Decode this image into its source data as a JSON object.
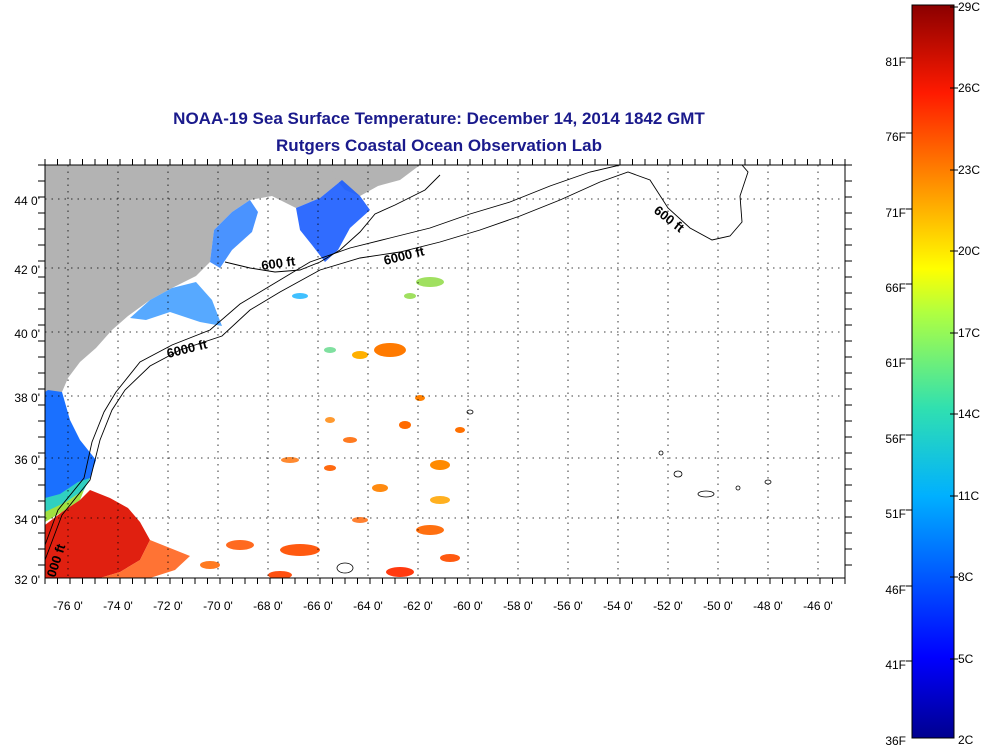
{
  "title": "NOAA-19 Sea Surface Temperature:  December 14, 2014 1842 GMT",
  "subtitle": "Rutgers Coastal Ocean Observation Lab",
  "lat_ticks": [
    "32 0'",
    "34 0'",
    "36 0'",
    "38 0'",
    "40 0'",
    "42 0'",
    "44 0'"
  ],
  "lon_ticks": [
    "-76 0'",
    "-74 0'",
    "-72 0'",
    "-70 0'",
    "-68 0'",
    "-66 0'",
    "-64 0'",
    "-62 0'",
    "-60 0'",
    "-58 0'",
    "-56 0'",
    "-54 0'",
    "-52 0'",
    "-50 0'",
    "-48 0'",
    "-46 0'"
  ],
  "isobath_labels": [
    "600 ft",
    "6000 ft",
    "6000 ft",
    "600 ft",
    "000 ft"
  ],
  "colorbar": {
    "fahrenheit_labels": [
      "81F",
      "76F",
      "71F",
      "66F",
      "61F",
      "56F",
      "51F",
      "46F",
      "41F",
      "36F"
    ],
    "celsius_labels": [
      "29C",
      "26C",
      "23C",
      "20C",
      "17C",
      "14C",
      "11C",
      "8C",
      "5C",
      "2C"
    ]
  },
  "colors": {
    "title": "#1a1a8c",
    "land": "#b3b3b3",
    "cold": "#0000a0",
    "warm": "#8b0000"
  }
}
